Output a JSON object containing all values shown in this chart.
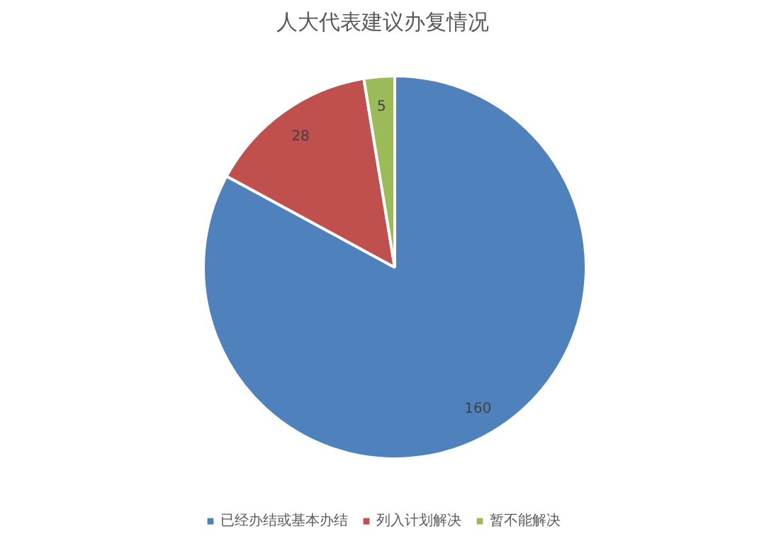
{
  "chart_data": {
    "type": "pie",
    "title": "人大代表建议办复情况",
    "categories": [
      "已经办结或基本办结",
      "列入计划解决",
      "暂不能解决"
    ],
    "values": [
      160,
      28,
      5
    ],
    "colors": [
      "#4f81bd",
      "#c0504d",
      "#9bbb59"
    ],
    "data_labels": true,
    "legend": "bottom"
  }
}
